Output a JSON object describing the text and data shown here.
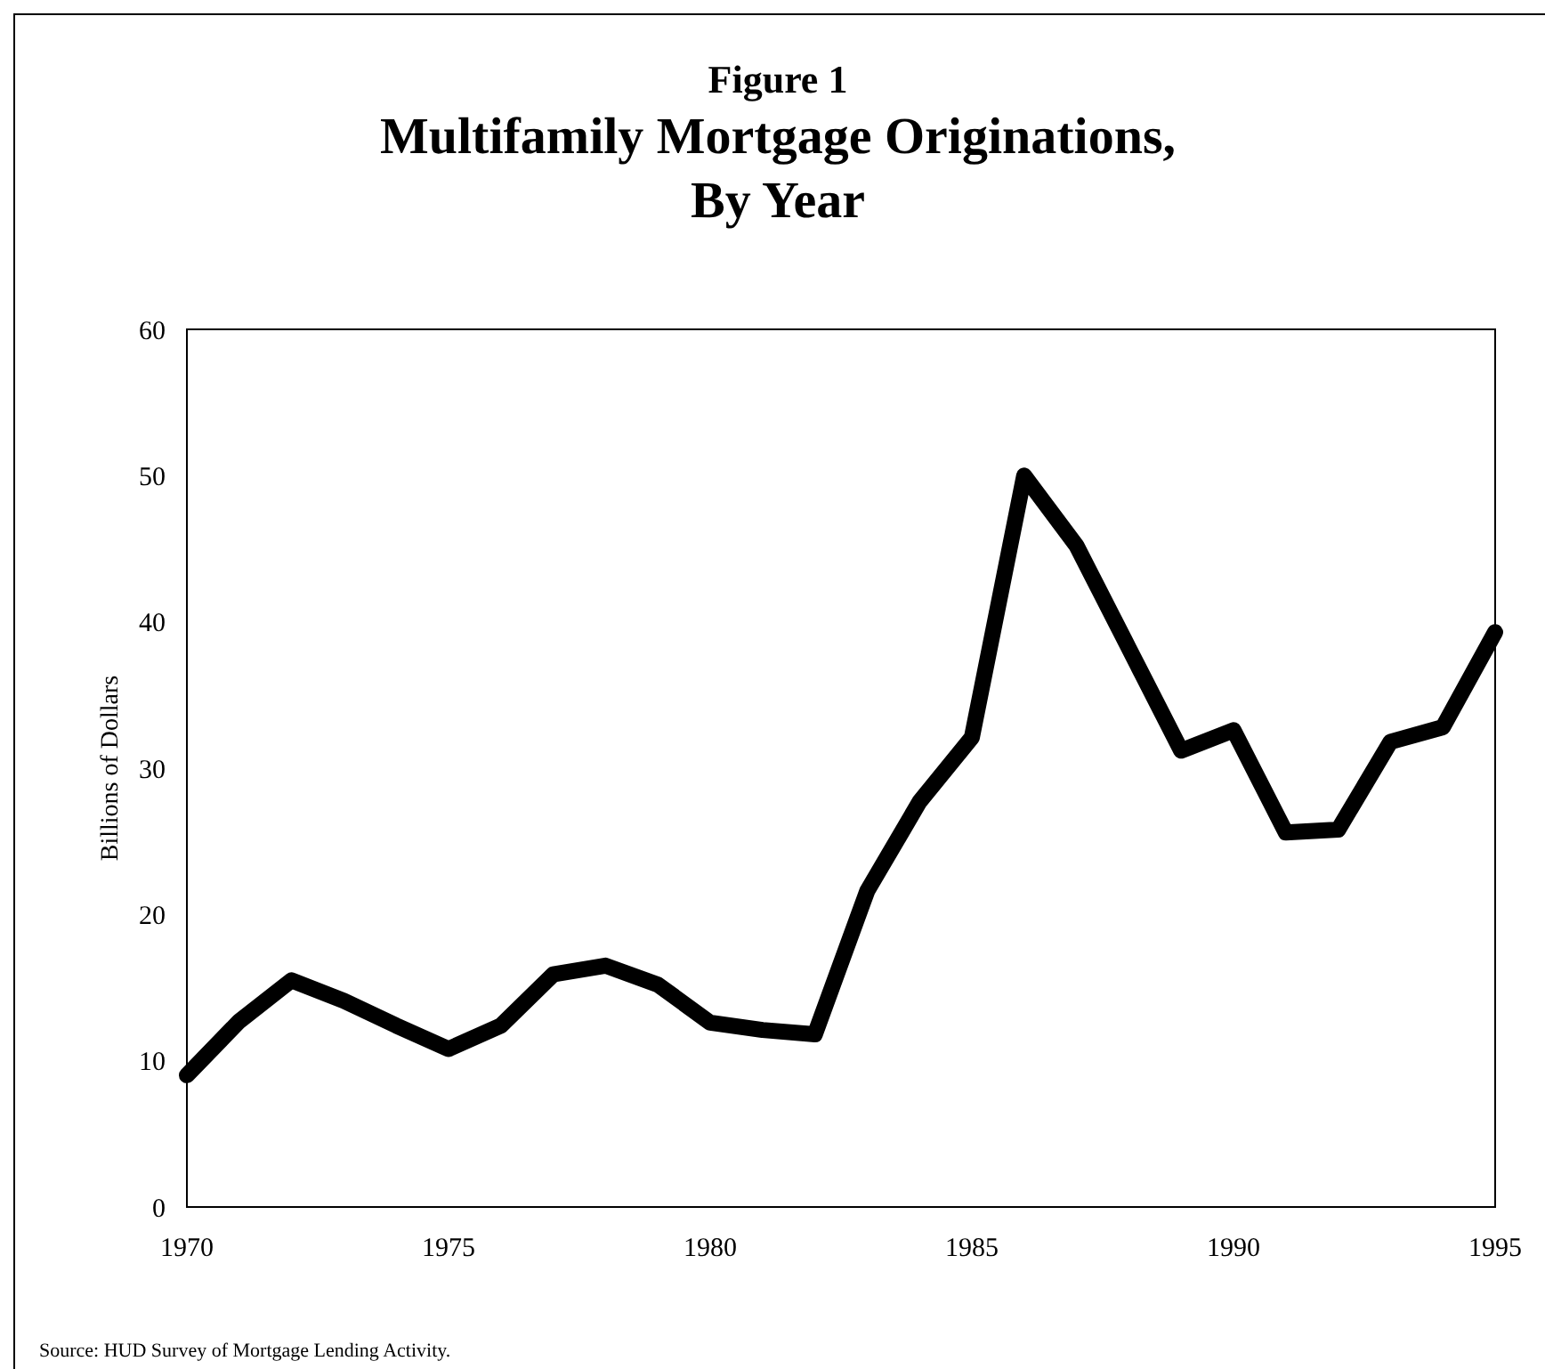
{
  "chart_data": {
    "type": "line",
    "subtitle": "Figure 1",
    "title": "Multifamily Mortgage Originations, By Year",
    "ylabel": "Billions of Dollars",
    "annotations": [
      "Source:  HUD Survey of Mortgage Lending Activity."
    ],
    "x": [
      1970,
      1971,
      1972,
      1973,
      1974,
      1975,
      1976,
      1977,
      1978,
      1979,
      1980,
      1981,
      1982,
      1983,
      1984,
      1985,
      1986,
      1987,
      1988,
      1989,
      1990,
      1991,
      1992,
      1993,
      1994,
      1995
    ],
    "series": [
      {
        "color": "#000000",
        "values": [
          9,
          12.7,
          15.5,
          14.1,
          12.4,
          10.8,
          12.4,
          15.9,
          16.5,
          15.2,
          12.6,
          12.1,
          11.8,
          21.6,
          27.7,
          32.1,
          50,
          45.2,
          38.2,
          31.2,
          32.6,
          25.6,
          25.8,
          31.8,
          32.8,
          39.3
        ]
      }
    ],
    "xlim": [
      1970,
      1995
    ],
    "xticks": [
      1970,
      1975,
      1980,
      1985,
      1990,
      1995
    ],
    "ylim": [
      0,
      60
    ],
    "yticks": [
      0,
      10,
      20,
      30,
      40,
      50,
      60
    ],
    "grid": false,
    "marker": "none",
    "line_style": "solid"
  }
}
